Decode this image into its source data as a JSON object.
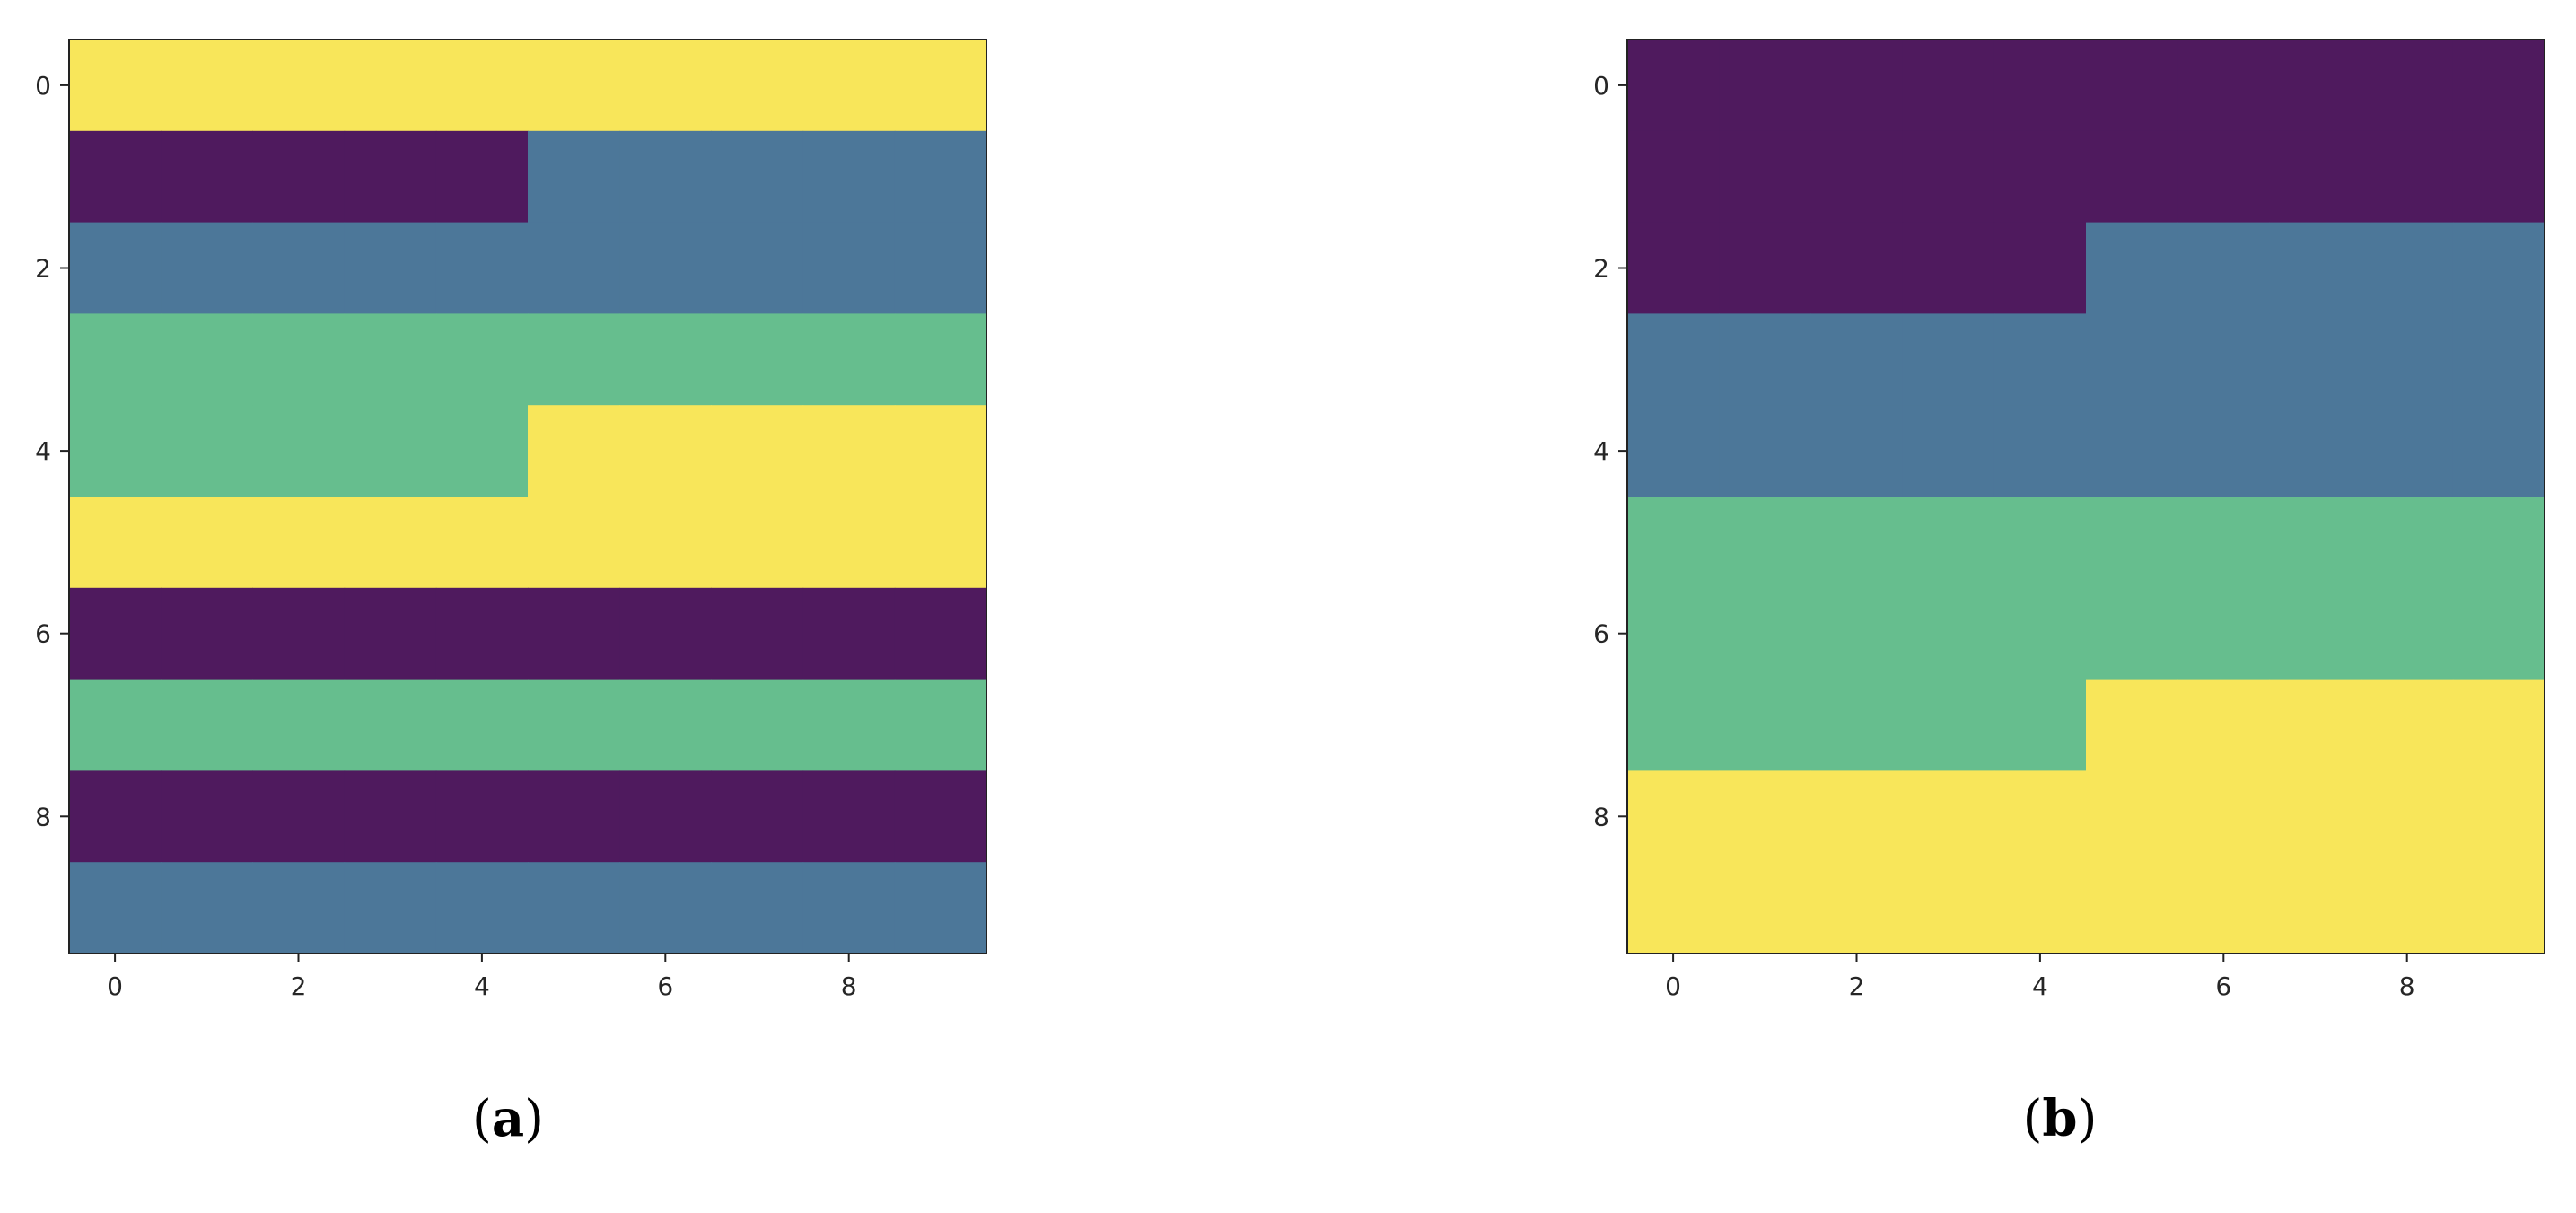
{
  "chart_data": [
    {
      "type": "heatmap",
      "caption": "a",
      "colormap": [
        "#440154",
        "#31688e",
        "#35b779",
        "#fde725"
      ],
      "displayed_colors": [
        "#4f1a5e",
        "#4c7799",
        "#66be8e",
        "#f8e65a"
      ],
      "x_ticks": [
        0,
        2,
        4,
        6,
        8
      ],
      "y_ticks": [
        0,
        2,
        4,
        6,
        8
      ],
      "xlim": [
        -0.5,
        9.5
      ],
      "ylim": [
        9.5,
        -0.5
      ],
      "y_inverted": true,
      "grid": false,
      "values": [
        [
          3,
          3,
          3,
          3,
          3,
          3,
          3,
          3,
          3,
          3
        ],
        [
          0,
          0,
          0,
          0,
          0,
          1,
          1,
          1,
          1,
          1
        ],
        [
          1,
          1,
          1,
          1,
          1,
          1,
          1,
          1,
          1,
          1
        ],
        [
          2,
          2,
          2,
          2,
          2,
          2,
          2,
          2,
          2,
          2
        ],
        [
          2,
          2,
          2,
          2,
          2,
          3,
          3,
          3,
          3,
          3
        ],
        [
          3,
          3,
          3,
          3,
          3,
          3,
          3,
          3,
          3,
          3
        ],
        [
          0,
          0,
          0,
          0,
          0,
          0,
          0,
          0,
          0,
          0
        ],
        [
          2,
          2,
          2,
          2,
          2,
          2,
          2,
          2,
          2,
          2
        ],
        [
          0,
          0,
          0,
          0,
          0,
          0,
          0,
          0,
          0,
          0
        ],
        [
          1,
          1,
          1,
          1,
          1,
          1,
          1,
          1,
          1,
          1
        ]
      ]
    },
    {
      "type": "heatmap",
      "caption": "b",
      "colormap": [
        "#440154",
        "#31688e",
        "#35b779",
        "#fde725"
      ],
      "displayed_colors": [
        "#4f1a5e",
        "#4c7799",
        "#66be8e",
        "#f8e65a"
      ],
      "x_ticks": [
        0,
        2,
        4,
        6,
        8
      ],
      "y_ticks": [
        0,
        2,
        4,
        6,
        8
      ],
      "xlim": [
        -0.5,
        9.5
      ],
      "ylim": [
        9.5,
        -0.5
      ],
      "y_inverted": true,
      "grid": false,
      "values": [
        [
          0,
          0,
          0,
          0,
          0,
          0,
          0,
          0,
          0,
          0
        ],
        [
          0,
          0,
          0,
          0,
          0,
          0,
          0,
          0,
          0,
          0
        ],
        [
          0,
          0,
          0,
          0,
          0,
          1,
          1,
          1,
          1,
          1
        ],
        [
          1,
          1,
          1,
          1,
          1,
          1,
          1,
          1,
          1,
          1
        ],
        [
          1,
          1,
          1,
          1,
          1,
          1,
          1,
          1,
          1,
          1
        ],
        [
          2,
          2,
          2,
          2,
          2,
          2,
          2,
          2,
          2,
          2
        ],
        [
          2,
          2,
          2,
          2,
          2,
          2,
          2,
          2,
          2,
          2
        ],
        [
          2,
          2,
          2,
          2,
          2,
          3,
          3,
          3,
          3,
          3
        ],
        [
          3,
          3,
          3,
          3,
          3,
          3,
          3,
          3,
          3,
          3
        ],
        [
          3,
          3,
          3,
          3,
          3,
          3,
          3,
          3,
          3,
          3
        ]
      ]
    }
  ]
}
